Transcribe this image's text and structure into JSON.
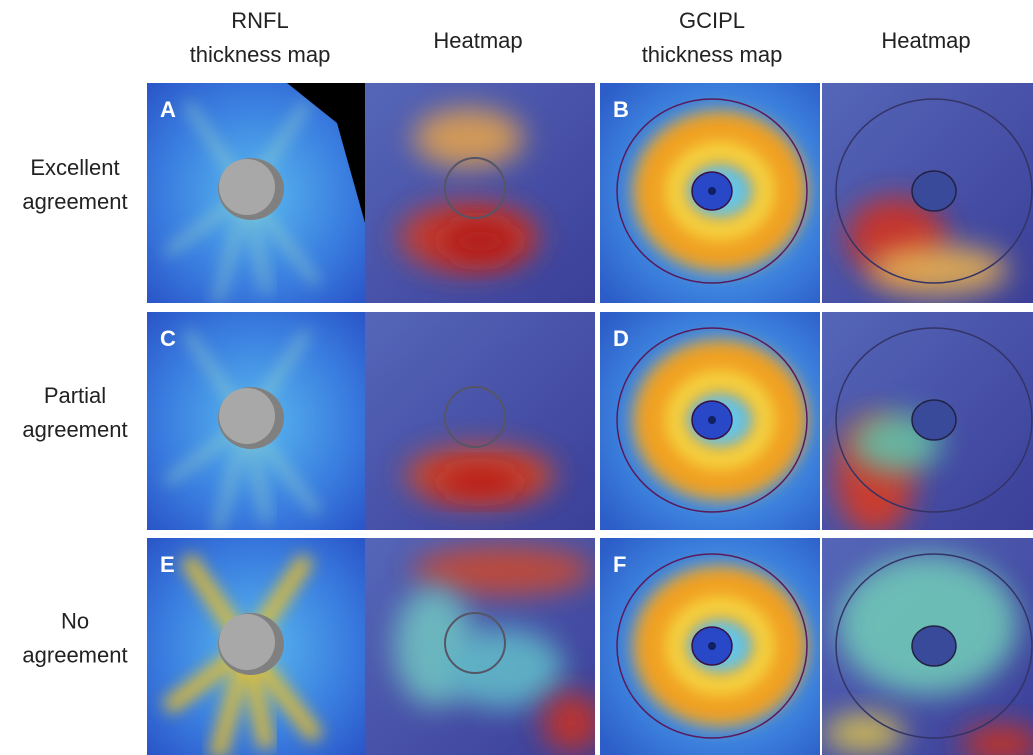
{
  "columns": [
    {
      "lines": [
        "RNFL",
        "thickness map"
      ]
    },
    {
      "lines": [
        "Heatmap"
      ]
    },
    {
      "lines": [
        "GCIPL",
        "thickness map"
      ]
    },
    {
      "lines": [
        "Heatmap"
      ]
    }
  ],
  "rows": [
    {
      "lines": [
        "Excellent",
        "agreement"
      ]
    },
    {
      "lines": [
        "Partial",
        "agreement"
      ]
    },
    {
      "lines": [
        "No",
        "agreement"
      ]
    }
  ],
  "panels": [
    "A",
    "B",
    "C",
    "D",
    "E",
    "F"
  ]
}
